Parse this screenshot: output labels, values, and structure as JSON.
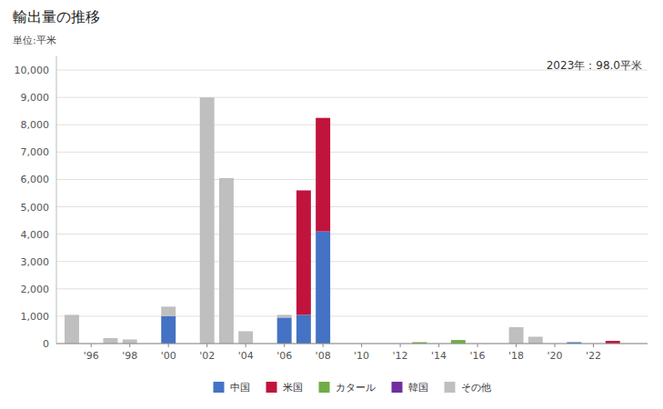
{
  "chart_data": {
    "type": "bar",
    "stacked": true,
    "title": "輸出量の推移",
    "y_label": "単位:平米",
    "annotation": "2023年：98.0平米",
    "x": [
      1995,
      1996,
      1997,
      1998,
      1999,
      2000,
      2001,
      2002,
      2003,
      2004,
      2005,
      2006,
      2007,
      2008,
      2009,
      2010,
      2011,
      2012,
      2013,
      2014,
      2015,
      2016,
      2017,
      2018,
      2019,
      2020,
      2021,
      2022,
      2023
    ],
    "series": [
      {
        "name": "中国",
        "color": "#4472c4",
        "values": [
          0,
          0,
          0,
          0,
          0,
          1000,
          0,
          0,
          0,
          0,
          0,
          950,
          1050,
          4100,
          0,
          0,
          0,
          0,
          0,
          0,
          0,
          0,
          0,
          0,
          0,
          0,
          50,
          0,
          0
        ]
      },
      {
        "name": "米国",
        "color": "#c0143c",
        "values": [
          0,
          0,
          0,
          0,
          0,
          0,
          0,
          0,
          0,
          0,
          0,
          0,
          4550,
          4150,
          0,
          0,
          0,
          0,
          0,
          0,
          0,
          0,
          0,
          0,
          0,
          0,
          0,
          0,
          98
        ]
      },
      {
        "name": "カタール",
        "color": "#70ad47",
        "values": [
          0,
          0,
          0,
          0,
          0,
          0,
          0,
          0,
          0,
          0,
          0,
          0,
          0,
          0,
          0,
          0,
          0,
          0,
          50,
          0,
          130,
          0,
          0,
          0,
          0,
          0,
          0,
          0,
          0
        ]
      },
      {
        "name": "韓国",
        "color": "#7030a0",
        "values": [
          0,
          0,
          0,
          0,
          0,
          0,
          0,
          0,
          0,
          0,
          0,
          0,
          0,
          0,
          0,
          0,
          0,
          0,
          0,
          0,
          0,
          0,
          0,
          0,
          0,
          0,
          0,
          0,
          0
        ]
      },
      {
        "name": "その他",
        "color": "#bfbfbf",
        "values": [
          1050,
          0,
          200,
          150,
          0,
          350,
          0,
          9000,
          6050,
          450,
          0,
          100,
          0,
          0,
          0,
          0,
          0,
          0,
          0,
          0,
          0,
          0,
          0,
          600,
          250,
          0,
          0,
          0,
          0
        ]
      }
    ],
    "xlim": [
      1994.2,
      2024.8
    ],
    "xticks": [
      {
        "value": 1996,
        "label": "'96"
      },
      {
        "value": 1998,
        "label": "'98"
      },
      {
        "value": 2000,
        "label": "'00"
      },
      {
        "value": 2002,
        "label": "'02"
      },
      {
        "value": 2004,
        "label": "'04"
      },
      {
        "value": 2006,
        "label": "'06"
      },
      {
        "value": 2008,
        "label": "'08"
      },
      {
        "value": 2010,
        "label": "'10"
      },
      {
        "value": 2012,
        "label": "'12"
      },
      {
        "value": 2014,
        "label": "'14"
      },
      {
        "value": 2016,
        "label": "'16"
      },
      {
        "value": 2018,
        "label": "'18"
      },
      {
        "value": 2020,
        "label": "'20"
      },
      {
        "value": 2022,
        "label": "'22"
      }
    ],
    "ylim": [
      0,
      10500
    ],
    "yticks": [
      0,
      {
        "value": 1000,
        "label": "1,000"
      },
      {
        "value": 2000,
        "label": "2,000"
      },
      {
        "value": 3000,
        "label": "3,000"
      },
      {
        "value": 4000,
        "label": "4,000"
      },
      {
        "value": 5000,
        "label": "5,000"
      },
      {
        "value": 6000,
        "label": "6,000"
      },
      {
        "value": 7000,
        "label": "7,000"
      },
      {
        "value": 8000,
        "label": "8,000"
      },
      {
        "value": 9000,
        "label": "9,000"
      },
      {
        "value": 10000,
        "label": "10,000"
      }
    ],
    "grid": true,
    "legend": "bottom"
  }
}
